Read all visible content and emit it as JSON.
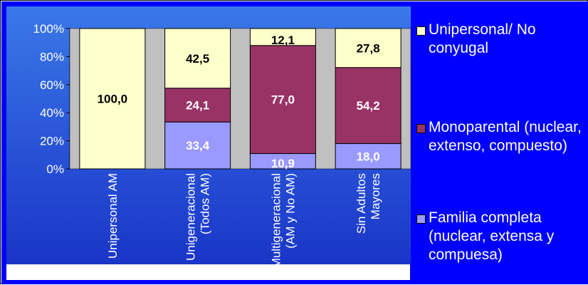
{
  "chart_data": {
    "type": "bar",
    "stacked": true,
    "percent_scale": true,
    "categories": [
      "Unipersonal AM",
      "Unigeneracional (Todos AM)",
      "Multigeneracional (AM y No AM)",
      "Sin Adultos Mayores"
    ],
    "series": [
      {
        "name": "Familia completa (nuclear, extensa y compuesa)",
        "color": "#9999ff",
        "values": [
          0,
          33.4,
          10.9,
          18.0
        ],
        "labels": [
          "",
          "33,4",
          "10,9",
          "18,0"
        ]
      },
      {
        "name": "Monoparental (nuclear, extenso, compuesto)",
        "color": "#993366",
        "values": [
          0,
          24.1,
          77.0,
          54.2
        ],
        "labels": [
          "",
          "24,1",
          "77,0",
          "54,2"
        ]
      },
      {
        "name": "Unipersonal/ No conyugal",
        "color": "#ffffcc",
        "values": [
          100.0,
          42.5,
          12.1,
          27.8
        ],
        "labels": [
          "100,0",
          "42,5",
          "12,1",
          "27,8"
        ]
      }
    ],
    "y_ticks": [
      "0%",
      "20%",
      "40%",
      "60%",
      "80%",
      "100%"
    ],
    "ylim": [
      0,
      100
    ],
    "grid": false,
    "legend_position": "right",
    "colors": {
      "background": "#0000ff",
      "plot_background_top": "#3a78e8",
      "plot_background_bottom": "#1a35c8",
      "gap_fill": "#c0c0c0",
      "text_light": "#ffffff"
    }
  },
  "legend": {
    "items": [
      {
        "label": "Unipersonal/ No conyugal",
        "color": "#ffffcc"
      },
      {
        "label": "Monoparental (nuclear, extenso, compuesto)",
        "color": "#993366"
      },
      {
        "label": "Familia completa (nuclear, extensa y compuesa)",
        "color": "#9999ff"
      }
    ]
  }
}
